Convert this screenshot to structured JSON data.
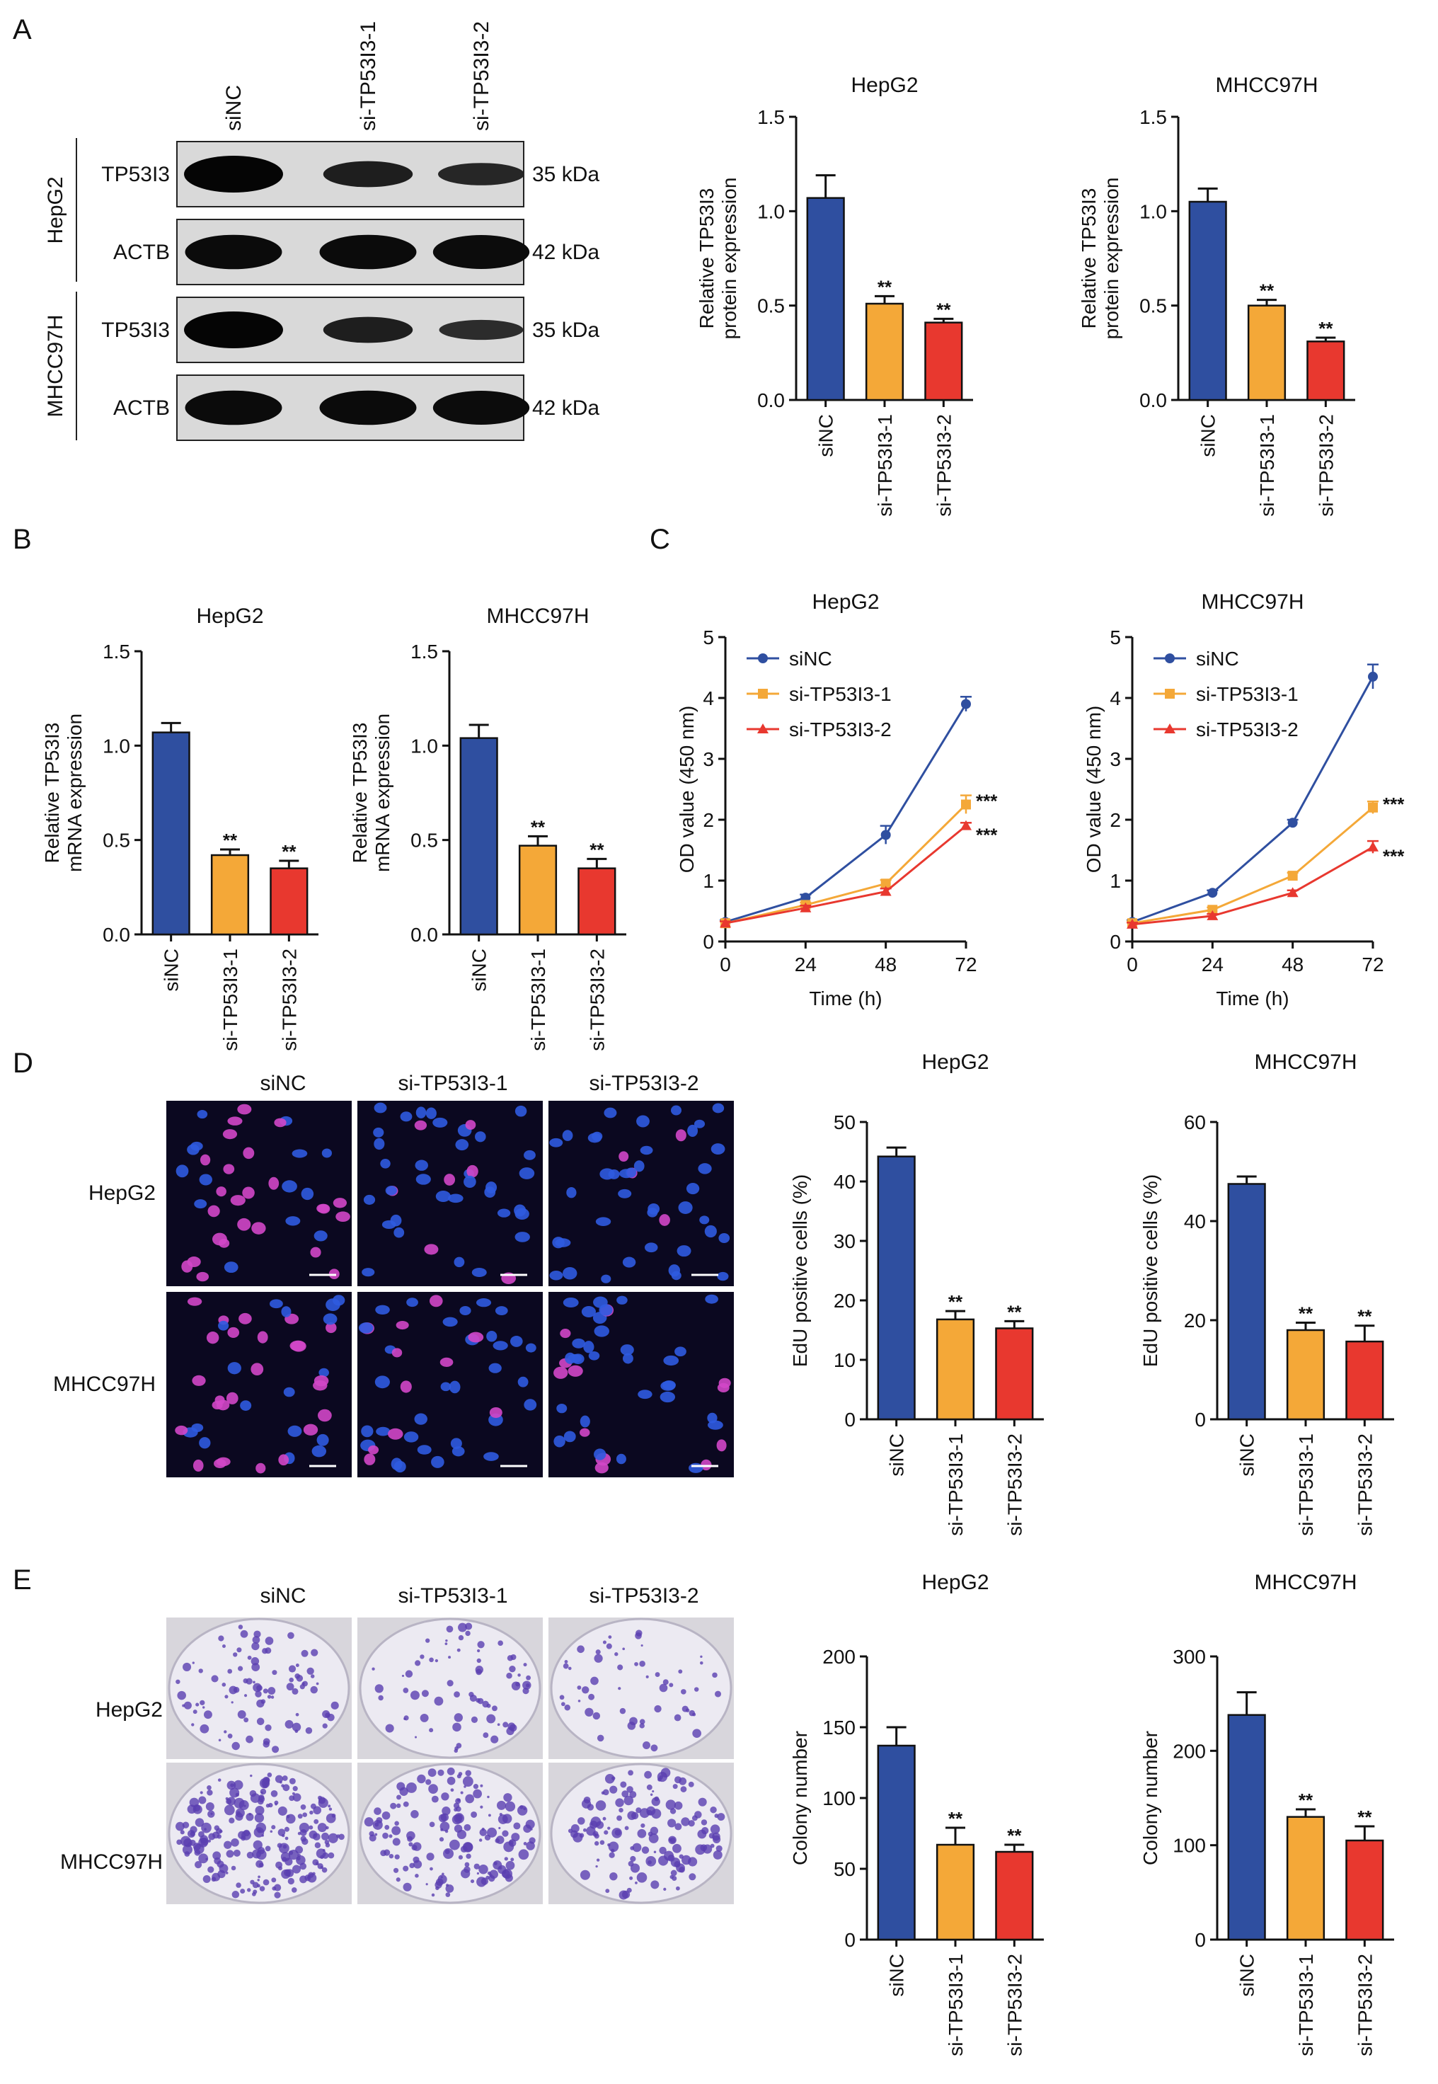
{
  "panels": {
    "A": {
      "letter": "A",
      "blot": {
        "lanes": [
          "siNC",
          "si-TP53I3-1",
          "si-TP53I3-2"
        ],
        "cell_lines": [
          "HepG2",
          "MHCC97H"
        ],
        "rows": [
          {
            "protein": "TP53I3",
            "kda": "35 kDa",
            "intensities": [
              1.0,
              0.55,
              0.4
            ]
          },
          {
            "protein": "ACTB",
            "kda": "42 kDa",
            "intensities": [
              0.9,
              0.9,
              0.88
            ]
          },
          {
            "protein": "TP53I3",
            "kda": "35 kDa",
            "intensities": [
              1.0,
              0.55,
              0.3
            ]
          },
          {
            "protein": "ACTB",
            "kda": "42 kDa",
            "intensities": [
              0.9,
              0.9,
              0.88
            ]
          }
        ]
      }
    },
    "B": {
      "letter": "B"
    },
    "C": {
      "letter": "C"
    },
    "D": {
      "letter": "D",
      "columns": [
        "siNC",
        "si-TP53I3-1",
        "si-TP53I3-2"
      ],
      "rows": [
        "HepG2",
        "MHCC97H"
      ]
    },
    "E": {
      "letter": "E",
      "columns": [
        "siNC",
        "si-TP53I3-1",
        "si-TP53I3-2"
      ],
      "rows": [
        "HepG2",
        "MHCC97H"
      ]
    }
  },
  "colors": {
    "siNC": "#2f4fa0",
    "si-TP53I3-1": "#f4a838",
    "si-TP53I3-2": "#e8382f"
  },
  "chart_data": [
    {
      "id": "A_HepG2",
      "type": "bar",
      "title": "HepG2",
      "ylabel": "Relative TP53I3 protein expression",
      "categories": [
        "siNC",
        "si-TP53I3-1",
        "si-TP53I3-2"
      ],
      "values": [
        1.07,
        0.51,
        0.41
      ],
      "errors": [
        0.12,
        0.04,
        0.02
      ],
      "significance": [
        "",
        "**",
        "**"
      ],
      "ylim": [
        0,
        1.5
      ],
      "yticks": [
        "0.0",
        "0.5",
        "1.0",
        "1.5"
      ]
    },
    {
      "id": "A_MHCC97H",
      "type": "bar",
      "title": "MHCC97H",
      "ylabel": "Relative TP53I3 protein expression",
      "categories": [
        "siNC",
        "si-TP53I3-1",
        "si-TP53I3-2"
      ],
      "values": [
        1.05,
        0.5,
        0.31
      ],
      "errors": [
        0.07,
        0.03,
        0.02
      ],
      "significance": [
        "",
        "**",
        "**"
      ],
      "ylim": [
        0,
        1.5
      ],
      "yticks": [
        "0.0",
        "0.5",
        "1.0",
        "1.5"
      ]
    },
    {
      "id": "B_HepG2",
      "type": "bar",
      "title": "HepG2",
      "ylabel": "Relative TP53I3 mRNA expression",
      "categories": [
        "siNC",
        "si-TP53I3-1",
        "si-TP53I3-2"
      ],
      "values": [
        1.07,
        0.42,
        0.35
      ],
      "errors": [
        0.05,
        0.03,
        0.04
      ],
      "significance": [
        "",
        "**",
        "**"
      ],
      "ylim": [
        0,
        1.5
      ],
      "yticks": [
        "0.0",
        "0.5",
        "1.0",
        "1.5"
      ]
    },
    {
      "id": "B_MHCC97H",
      "type": "bar",
      "title": "MHCC97H",
      "ylabel": "Relative TP53I3 mRNA expression",
      "categories": [
        "siNC",
        "si-TP53I3-1",
        "si-TP53I3-2"
      ],
      "values": [
        1.04,
        0.47,
        0.35
      ],
      "errors": [
        0.07,
        0.05,
        0.05
      ],
      "significance": [
        "",
        "**",
        "**"
      ],
      "ylim": [
        0,
        1.5
      ],
      "yticks": [
        "0.0",
        "0.5",
        "1.0",
        "1.5"
      ]
    },
    {
      "id": "C_HepG2",
      "type": "line",
      "title": "HepG2",
      "xlabel": "Time (h)",
      "ylabel": "OD value (450 nm)",
      "x": [
        0,
        24,
        48,
        72
      ],
      "xlim": [
        0,
        72
      ],
      "xticks": [
        "0",
        "24",
        "48",
        "72"
      ],
      "ylim": [
        0,
        5
      ],
      "yticks": [
        "0",
        "1",
        "2",
        "3",
        "4",
        "5"
      ],
      "legend_position": "top-left",
      "series": [
        {
          "name": "siNC",
          "values": [
            0.32,
            0.72,
            1.75,
            3.9
          ],
          "errors": [
            0.03,
            0.05,
            0.15,
            0.12
          ],
          "marker": "circle",
          "significance": ""
        },
        {
          "name": "si-TP53I3-1",
          "values": [
            0.3,
            0.6,
            0.95,
            2.25
          ],
          "errors": [
            0.03,
            0.04,
            0.06,
            0.15
          ],
          "marker": "square",
          "significance": "***"
        },
        {
          "name": "si-TP53I3-2",
          "values": [
            0.3,
            0.55,
            0.82,
            1.9
          ],
          "errors": [
            0.03,
            0.04,
            0.05,
            0.05
          ],
          "marker": "triangle",
          "significance": "***"
        }
      ]
    },
    {
      "id": "C_MHCC97H",
      "type": "line",
      "title": "MHCC97H",
      "xlabel": "Time (h)",
      "ylabel": "OD value (450 nm)",
      "x": [
        0,
        24,
        48,
        72
      ],
      "xlim": [
        0,
        72
      ],
      "xticks": [
        "0",
        "24",
        "48",
        "72"
      ],
      "ylim": [
        0,
        5
      ],
      "yticks": [
        "0",
        "1",
        "2",
        "3",
        "4",
        "5"
      ],
      "legend_position": "top-left",
      "series": [
        {
          "name": "siNC",
          "values": [
            0.32,
            0.8,
            1.95,
            4.35
          ],
          "errors": [
            0.03,
            0.04,
            0.05,
            0.2
          ],
          "marker": "circle",
          "significance": ""
        },
        {
          "name": "si-TP53I3-1",
          "values": [
            0.3,
            0.52,
            1.08,
            2.2
          ],
          "errors": [
            0.03,
            0.04,
            0.05,
            0.1
          ],
          "marker": "square",
          "significance": "***"
        },
        {
          "name": "si-TP53I3-2",
          "values": [
            0.28,
            0.42,
            0.8,
            1.55
          ],
          "errors": [
            0.03,
            0.03,
            0.04,
            0.1
          ],
          "marker": "triangle",
          "significance": "***"
        }
      ]
    },
    {
      "id": "D_HepG2",
      "type": "bar",
      "title": "HepG2",
      "ylabel": "EdU positive cells (%)",
      "categories": [
        "siNC",
        "si-TP53I3-1",
        "si-TP53I3-2"
      ],
      "values": [
        44.2,
        16.8,
        15.3
      ],
      "errors": [
        1.5,
        1.4,
        1.2
      ],
      "significance": [
        "",
        "**",
        "**"
      ],
      "ylim": [
        0,
        50
      ],
      "yticks": [
        "0",
        "10",
        "20",
        "30",
        "40",
        "50"
      ]
    },
    {
      "id": "D_MHCC97H",
      "type": "bar",
      "title": "MHCC97H",
      "ylabel": "EdU positive cells (%)",
      "categories": [
        "siNC",
        "si-TP53I3-1",
        "si-TP53I3-2"
      ],
      "values": [
        47.5,
        18.0,
        15.7
      ],
      "errors": [
        1.5,
        1.5,
        3.2
      ],
      "significance": [
        "",
        "**",
        "**"
      ],
      "ylim": [
        0,
        60
      ],
      "yticks": [
        "0",
        "20",
        "40",
        "60"
      ]
    },
    {
      "id": "E_HepG2",
      "type": "bar",
      "title": "HepG2",
      "ylabel": "Colony number",
      "categories": [
        "siNC",
        "si-TP53I3-1",
        "si-TP53I3-2"
      ],
      "values": [
        137,
        67,
        62
      ],
      "errors": [
        13,
        12,
        5
      ],
      "significance": [
        "",
        "**",
        "**"
      ],
      "ylim": [
        0,
        200
      ],
      "yticks": [
        "0",
        "50",
        "100",
        "150",
        "200"
      ]
    },
    {
      "id": "E_MHCC97H",
      "type": "bar",
      "title": "MHCC97H",
      "ylabel": "Colony number",
      "categories": [
        "siNC",
        "si-TP53I3-1",
        "si-TP53I3-2"
      ],
      "values": [
        238,
        130,
        105
      ],
      "errors": [
        24,
        8,
        15
      ],
      "significance": [
        "",
        "**",
        "**"
      ],
      "ylim": [
        0,
        300
      ],
      "yticks": [
        "0",
        "100",
        "200",
        "300"
      ]
    }
  ]
}
